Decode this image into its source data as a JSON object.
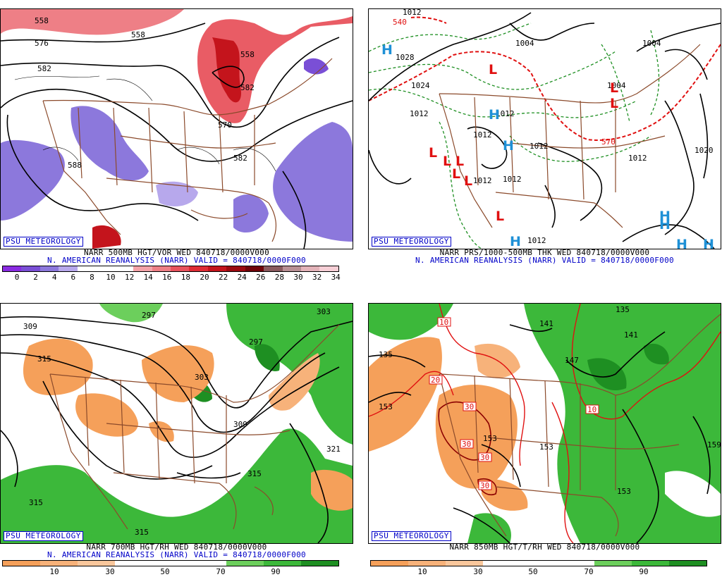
{
  "panels": [
    {
      "id": "vor",
      "brand": "PSU METEOROLOGY",
      "title_line1": "NARR 500MB HGT/VOR WED 840718/0000V000",
      "title_line2": "N. AMERICAN REANALYSIS (NARR) VALID = 840718/0000F000",
      "colorbar": {
        "colors": [
          "#8a2be2",
          "#7a4fd6",
          "#8c78dc",
          "#b7a8ec",
          "#ffffff",
          "#ffffff",
          "#ffffff",
          "#f4a3a8",
          "#ee7f86",
          "#e8535d",
          "#de2c35",
          "#c4141c",
          "#9c0a10",
          "#700409",
          "#8a5a5e",
          "#b88f94",
          "#e3b3b9",
          "#f7cfd6"
        ],
        "ticks": [
          "0",
          "2",
          "4",
          "6",
          "8",
          "10",
          "12",
          "14",
          "16",
          "18",
          "20",
          "22",
          "24",
          "26",
          "28",
          "30",
          "32",
          "34"
        ]
      },
      "contour_labels": [
        "558",
        "576",
        "582",
        "558",
        "570",
        "582",
        "588",
        "558",
        "582"
      ]
    },
    {
      "id": "prs",
      "brand": "PSU METEOROLOGY",
      "title_line1": "NARR PRS/1000-500MB THK WED 840718/0000V000",
      "title_line2": "N. AMERICAN REANALYSIS (NARR) VALID = 840718/0000F000",
      "contour_labels": [
        "1028",
        "1004",
        "1004",
        "1024",
        "1012",
        "1012",
        "1012",
        "1012",
        "1012",
        "1012",
        "1012",
        "1004",
        "1012",
        "1020",
        "1012",
        "540",
        "570"
      ],
      "pressure_centers": [
        {
          "type": "H",
          "color": "#1e90d6"
        },
        {
          "type": "L",
          "color": "#e01010"
        },
        {
          "type": "L",
          "color": "#e01010"
        },
        {
          "type": "H",
          "color": "#1e90d6"
        },
        {
          "type": "H",
          "color": "#1e90d6"
        },
        {
          "type": "L",
          "color": "#e01010"
        },
        {
          "type": "L",
          "color": "#e01010"
        },
        {
          "type": "L",
          "color": "#e01010"
        },
        {
          "type": "L",
          "color": "#e01010"
        },
        {
          "type": "L",
          "color": "#e01010"
        },
        {
          "type": "L",
          "color": "#e01010"
        },
        {
          "type": "L",
          "color": "#e01010"
        },
        {
          "type": "H",
          "color": "#1e90d6"
        },
        {
          "type": "H",
          "color": "#1e90d6"
        },
        {
          "type": "H",
          "color": "#1e90d6"
        },
        {
          "type": "H",
          "color": "#1e90d6"
        },
        {
          "type": "H",
          "color": "#1e90d6"
        }
      ]
    },
    {
      "id": "rh700",
      "brand": "PSU METEOROLOGY",
      "title_line1": "NARR 700MB HGT/RH WED 840718/0000V000",
      "title_line2": "N. AMERICAN REANALYSIS (NARR) VALID = 840718/0000F000",
      "colorbar": {
        "colors": [
          "#f5a05a",
          "#f7b27a",
          "#f9c79c",
          "#ffffff",
          "#ffffff",
          "#ffffff",
          "#6ccf5c",
          "#3cb83a",
          "#1e8f22"
        ],
        "ticks": [
          "10",
          "30",
          "50",
          "70",
          "90"
        ]
      },
      "contour_labels": [
        "309",
        "315",
        "297",
        "303",
        "309",
        "315",
        "297",
        "303",
        "321",
        "315",
        "315"
      ]
    },
    {
      "id": "rh850",
      "brand": "PSU METEOROLOGY",
      "title_line1": "NARR 850MB HGT/T/RH WED 840718/0000V000",
      "title_line2": "",
      "colorbar": {
        "colors": [
          "#f5a05a",
          "#f7b27a",
          "#f9c79c",
          "#ffffff",
          "#ffffff",
          "#ffffff",
          "#6ccf5c",
          "#3cb83a",
          "#1e8f22"
        ],
        "ticks": [
          "10",
          "30",
          "50",
          "70",
          "90"
        ]
      },
      "contour_labels": [
        "135",
        "141",
        "135",
        "147",
        "153",
        "141",
        "153",
        "153",
        "159",
        "153"
      ],
      "temp_labels": [
        "10",
        "20",
        "30",
        "30",
        "30",
        "30",
        "10"
      ]
    }
  ]
}
